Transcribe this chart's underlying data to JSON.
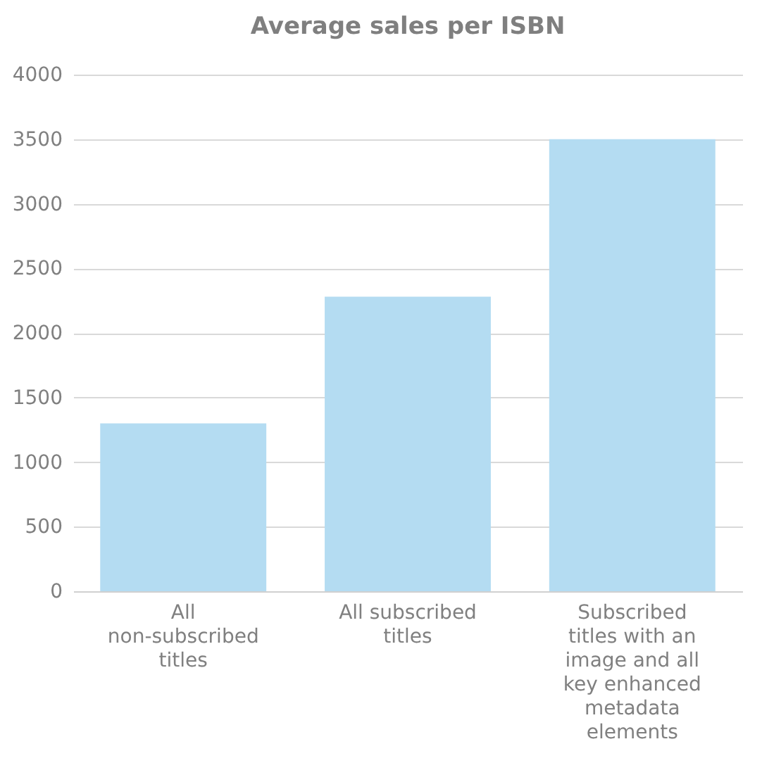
{
  "chart_data": {
    "type": "bar",
    "title": "Average sales per ISBN",
    "categories": [
      "All non-subscribed titles",
      "All subscribed titles",
      "Subscribed titles with an image and all key enhanced metadata elements"
    ],
    "values": [
      1300,
      2280,
      3500
    ],
    "color": "#b4dcf2",
    "ylim": [
      0,
      4000
    ],
    "yticks": [
      0,
      500,
      1000,
      1500,
      2000,
      2500,
      3000,
      3500,
      4000
    ],
    "grid": "y"
  }
}
